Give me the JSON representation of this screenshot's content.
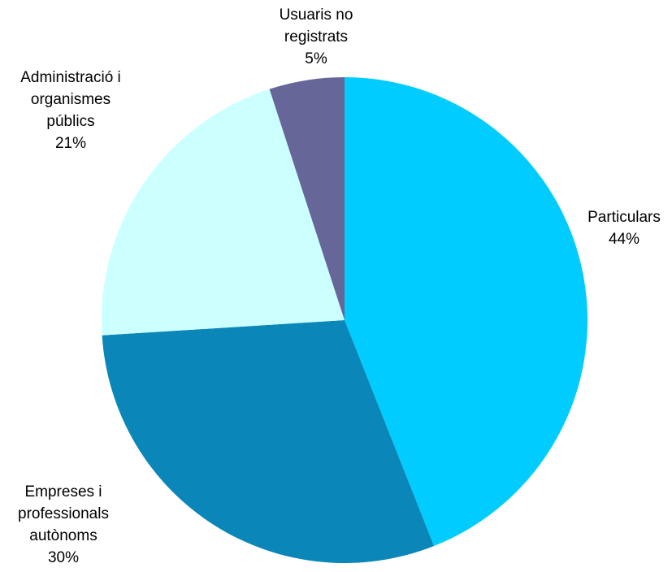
{
  "chart_data": {
    "type": "pie",
    "start_angle_deg": 0,
    "direction": "clockwise",
    "slices": [
      {
        "label_lines": [
          "Particulars"
        ],
        "percent_label": "44%",
        "value": 44,
        "color": "#00CCFF"
      },
      {
        "label_lines": [
          "Empreses i",
          "professionals",
          "autònoms"
        ],
        "percent_label": "30%",
        "value": 30,
        "color": "#0A86B8"
      },
      {
        "label_lines": [
          "Administració i",
          "organismes",
          "públics"
        ],
        "percent_label": "21%",
        "value": 21,
        "color": "#CCFFFF"
      },
      {
        "label_lines": [
          "Usuaris no",
          "registrats"
        ],
        "percent_label": "5%",
        "value": 5,
        "color": "#666699"
      }
    ]
  }
}
